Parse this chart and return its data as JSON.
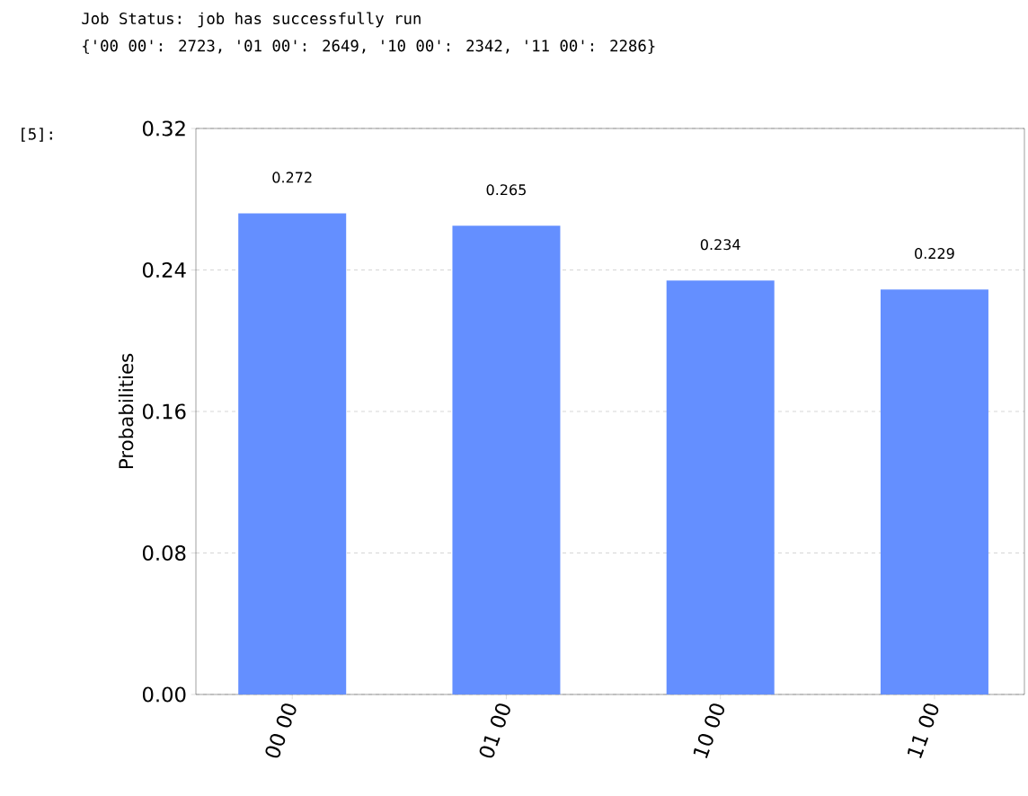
{
  "chart_data": {
    "type": "bar",
    "ylabel": "Probabilities",
    "categories": [
      "00 00",
      "01 00",
      "10 00",
      "11 00"
    ],
    "values": [
      0.272,
      0.265,
      0.234,
      0.229
    ],
    "value_labels": [
      "0.272",
      "0.265",
      "0.234",
      "0.229"
    ],
    "color": "#648fff",
    "ylim": [
      0,
      0.32
    ],
    "yticks": [
      {
        "value": 0,
        "label": "0.00"
      },
      {
        "value": 0.08,
        "label": "0.08"
      },
      {
        "value": 0.16,
        "label": "0.16"
      },
      {
        "value": 0.24,
        "label": "0.24"
      },
      {
        "value": 0.32,
        "label": "0.32"
      }
    ],
    "grid": "y",
    "annotations": [
      "Job Status: job has successfully run",
      "{'00 00': 2723, '01 00': 2649, '10 00': 2342, '11 00': 2286}",
      "[5]:"
    ]
  }
}
